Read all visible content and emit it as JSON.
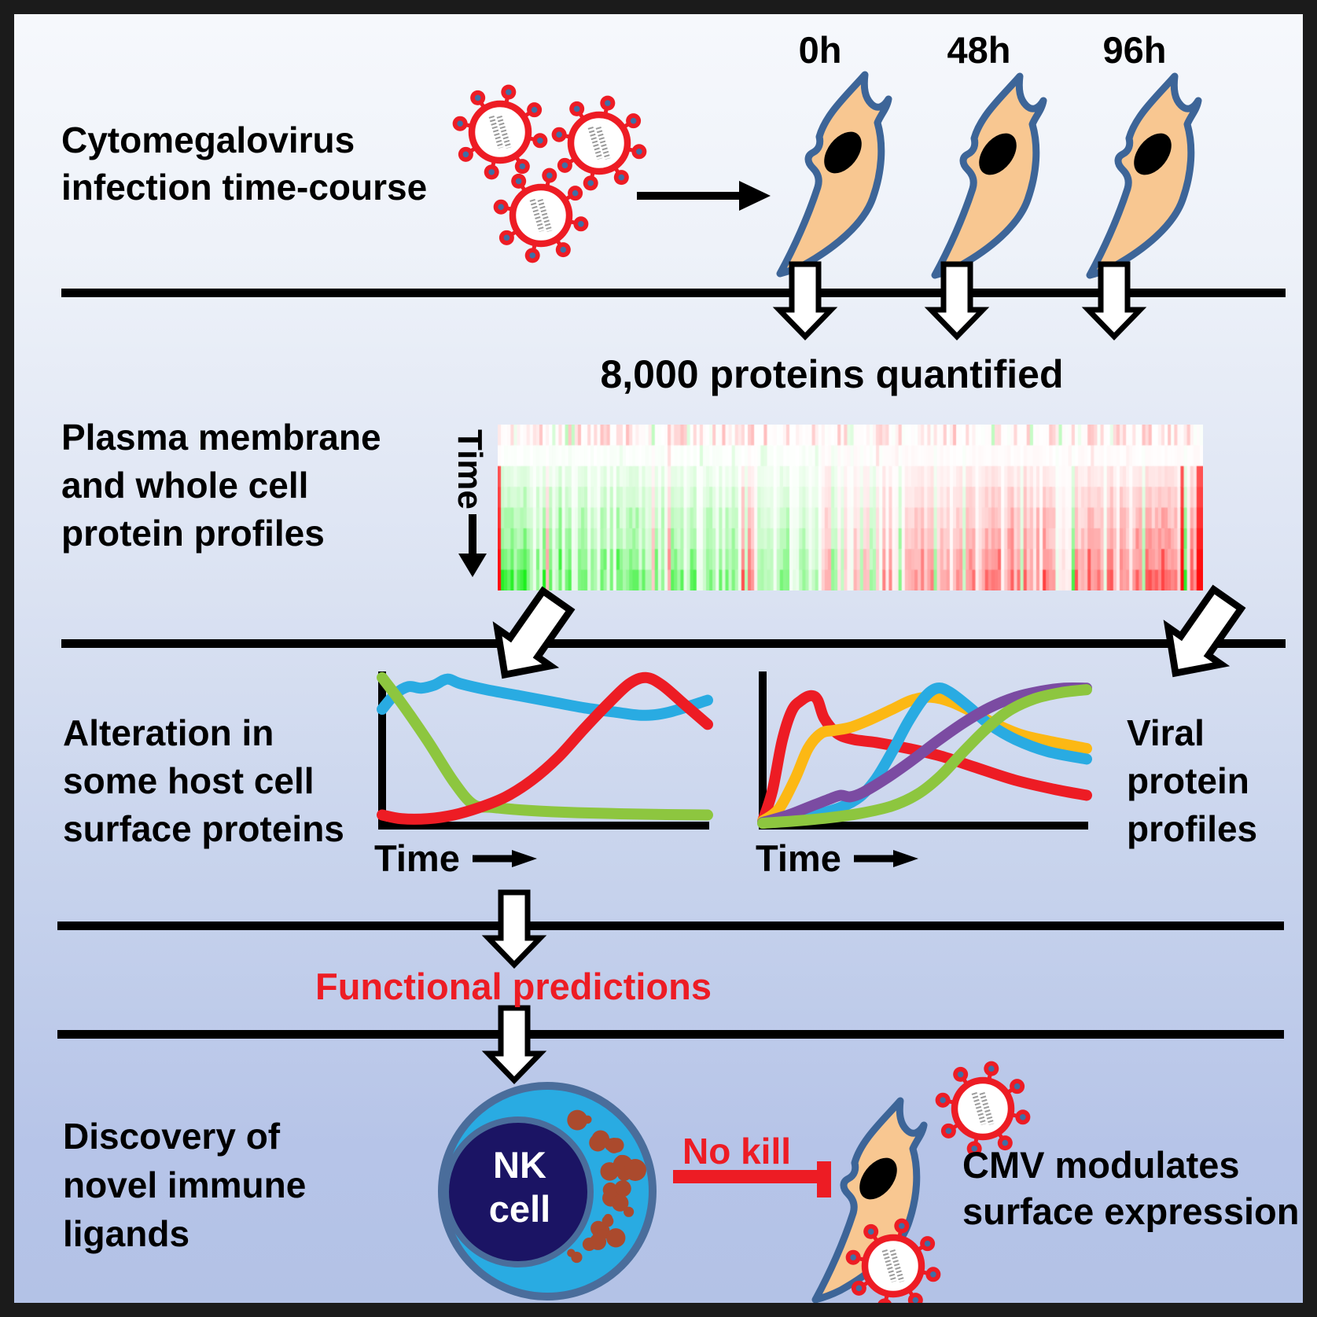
{
  "sections": {
    "timecourse": {
      "label_lines": [
        "Cytomegalovirus",
        "infection time-course"
      ],
      "timepoints": [
        "0h",
        "48h",
        "96h"
      ]
    },
    "profiling": {
      "heading": "8,000 proteins quantified",
      "label_lines": [
        "Plasma membrane",
        "and whole cell",
        "protein profiles"
      ],
      "time_axis_label": "Time"
    },
    "host_alteration": {
      "label_lines": [
        "Alteration in",
        "some host cell",
        "surface proteins"
      ],
      "time_axis_label": "Time"
    },
    "viral_profiles": {
      "label_lines": [
        "Viral",
        "protein",
        "profiles"
      ],
      "time_axis_label": "Time"
    },
    "prediction": {
      "label": "Functional predictions"
    },
    "discovery": {
      "label_lines": [
        "Discovery of",
        "novel immune",
        "ligands"
      ],
      "nk_cell_label_lines": [
        "NK",
        "cell"
      ],
      "no_kill_label": "No kill",
      "cmv_label_lines": [
        "CMV modulates",
        "surface expression"
      ]
    }
  },
  "palette": {
    "accent_red": "#ed1c24",
    "line_blue": "#29abe2",
    "line_green": "#8dc63f",
    "line_yellow": "#fcb814",
    "line_purple": "#7b4ba2",
    "cell_fill": "#f8c791",
    "cell_outline": "#3d6598",
    "nk_outer_fill": "#29abe2",
    "nk_nucleus_fill": "#1b1464",
    "nk_border": "#4a6d9b",
    "granule": "#ab4a2d",
    "virus_red": "#ed1c24",
    "virus_dot_blue": "#3f6fa5",
    "heatmap_up": "#ff0000",
    "heatmap_down": "#00d400"
  },
  "icons": {
    "virus": "cmv-virion-icon",
    "fibroblast": "fibroblast-cell-icon",
    "nk_cell": "nk-cell-icon",
    "flow_arrow": "white-block-arrow-icon",
    "inhibition": "inhibition-tbar-icon"
  },
  "chart_data": [
    {
      "type": "line",
      "id": "host_surface_proteins",
      "title": "Alteration in some host cell surface proteins",
      "xlabel": "Time",
      "x_range": [
        0,
        100
      ],
      "y_range": [
        0,
        100
      ],
      "grid": false,
      "legend": "none",
      "series": [
        {
          "name": "host-protein-blue",
          "color": "#29abe2",
          "points": [
            [
              0,
              76
            ],
            [
              4,
              86
            ],
            [
              8,
              91
            ],
            [
              12,
              90
            ],
            [
              16,
              92
            ],
            [
              20,
              96
            ],
            [
              24,
              93
            ],
            [
              32,
              89
            ],
            [
              42,
              85
            ],
            [
              52,
              81
            ],
            [
              62,
              77
            ],
            [
              72,
              74
            ],
            [
              80,
              72
            ],
            [
              88,
              74
            ],
            [
              100,
              82
            ]
          ]
        },
        {
          "name": "host-protein-green",
          "color": "#8dc63f",
          "points": [
            [
              0,
              97
            ],
            [
              6,
              80
            ],
            [
              14,
              55
            ],
            [
              22,
              28
            ],
            [
              28,
              13
            ],
            [
              34,
              11
            ],
            [
              45,
              9
            ],
            [
              60,
              7.5
            ],
            [
              80,
              6.5
            ],
            [
              100,
              6
            ]
          ]
        },
        {
          "name": "host-protein-red",
          "color": "#ed1c24",
          "points": [
            [
              0,
              6
            ],
            [
              6,
              3.5
            ],
            [
              14,
              3.5
            ],
            [
              22,
              6
            ],
            [
              30,
              11
            ],
            [
              38,
              18
            ],
            [
              46,
              29
            ],
            [
              54,
              44
            ],
            [
              62,
              63
            ],
            [
              70,
              81
            ],
            [
              76,
              93
            ],
            [
              81,
              97
            ],
            [
              86,
              92
            ],
            [
              93,
              79
            ],
            [
              100,
              66
            ]
          ]
        }
      ]
    },
    {
      "type": "line",
      "id": "viral_proteins",
      "title": "Viral protein profiles",
      "xlabel": "Time",
      "x_range": [
        0,
        100
      ],
      "y_range": [
        0,
        100
      ],
      "grid": false,
      "legend": "none",
      "series": [
        {
          "name": "viral-protein-red",
          "color": "#ed1c24",
          "points": [
            [
              0,
              2
            ],
            [
              3,
              22
            ],
            [
              6,
              55
            ],
            [
              9,
              75
            ],
            [
              12,
              82
            ],
            [
              15,
              85
            ],
            [
              17,
              82
            ],
            [
              19,
              70
            ],
            [
              23,
              60
            ],
            [
              28,
              56
            ],
            [
              35,
              54
            ],
            [
              45,
              50
            ],
            [
              55,
              45
            ],
            [
              65,
              38
            ],
            [
              78,
              29
            ],
            [
              90,
              23
            ],
            [
              100,
              19
            ]
          ]
        },
        {
          "name": "viral-protein-yellow",
          "color": "#fcb814",
          "points": [
            [
              0,
              2
            ],
            [
              5,
              10
            ],
            [
              10,
              30
            ],
            [
              14,
              50
            ],
            [
              18,
              60
            ],
            [
              22,
              62
            ],
            [
              27,
              64
            ],
            [
              33,
              69
            ],
            [
              40,
              76
            ],
            [
              46,
              82
            ],
            [
              52,
              84
            ],
            [
              58,
              81
            ],
            [
              65,
              74
            ],
            [
              72,
              66
            ],
            [
              80,
              59
            ],
            [
              88,
              55
            ],
            [
              100,
              50
            ]
          ]
        },
        {
          "name": "viral-protein-blue",
          "color": "#29abe2",
          "points": [
            [
              0,
              1
            ],
            [
              8,
              3
            ],
            [
              16,
              6
            ],
            [
              24,
              11
            ],
            [
              30,
              18
            ],
            [
              35,
              30
            ],
            [
              40,
              48
            ],
            [
              45,
              68
            ],
            [
              50,
              84
            ],
            [
              54,
              90
            ],
            [
              58,
              87
            ],
            [
              64,
              77
            ],
            [
              70,
              66
            ],
            [
              78,
              56
            ],
            [
              88,
              48
            ],
            [
              100,
              43
            ]
          ]
        },
        {
          "name": "viral-protein-purple",
          "color": "#7b4ba2",
          "points": [
            [
              0,
              1
            ],
            [
              8,
              6
            ],
            [
              14,
              11
            ],
            [
              20,
              16
            ],
            [
              24,
              19
            ],
            [
              27,
              18
            ],
            [
              31,
              21
            ],
            [
              38,
              30
            ],
            [
              46,
              42
            ],
            [
              54,
              55
            ],
            [
              62,
              67
            ],
            [
              70,
              77
            ],
            [
              78,
              84
            ],
            [
              86,
              88
            ],
            [
              93,
              90
            ],
            [
              100,
              90
            ]
          ]
        },
        {
          "name": "viral-protein-green",
          "color": "#8dc63f",
          "points": [
            [
              0,
              0.5
            ],
            [
              10,
              2
            ],
            [
              20,
              4
            ],
            [
              30,
              7
            ],
            [
              40,
              12
            ],
            [
              48,
              20
            ],
            [
              55,
              32
            ],
            [
              62,
              48
            ],
            [
              69,
              63
            ],
            [
              76,
              75
            ],
            [
              84,
              83
            ],
            [
              92,
              87
            ],
            [
              100,
              89
            ]
          ]
        }
      ]
    },
    {
      "type": "heatmap",
      "id": "protein_quantification",
      "title": "8,000 proteins quantified",
      "ylabel": "Time",
      "rows": 8,
      "cols": 220,
      "seed": 11,
      "color_up": "#ff0000",
      "color_down": "#00d400",
      "pattern": "protein columns: mostly down-regulated (green) on left, up-regulated (red) on right, intensity increasing with time (top row faint, bottom row saturated)"
    }
  ]
}
